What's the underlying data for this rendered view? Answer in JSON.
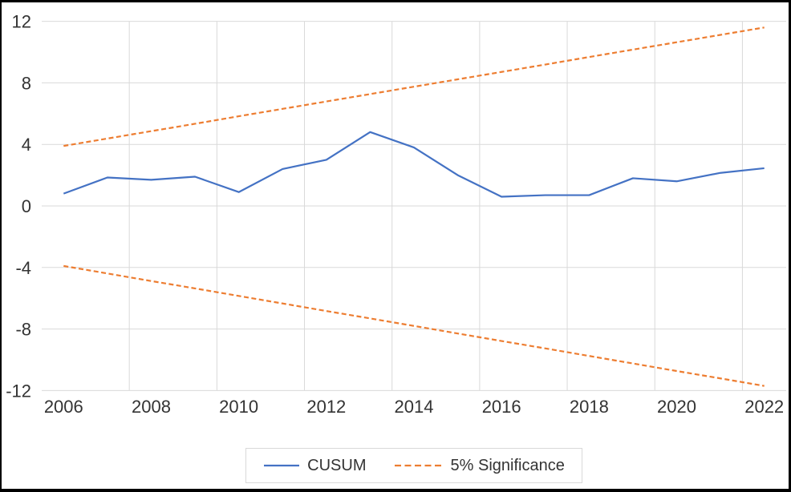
{
  "chart_data": {
    "type": "line",
    "x": [
      2006,
      2007,
      2008,
      2009,
      2010,
      2011,
      2012,
      2013,
      2014,
      2015,
      2016,
      2017,
      2018,
      2019,
      2020,
      2021,
      2022
    ],
    "series": [
      {
        "name": "CUSUM",
        "color": "#4472C4",
        "style": "solid",
        "values": [
          0.8,
          1.85,
          1.7,
          1.9,
          0.9,
          2.4,
          3.0,
          4.8,
          3.8,
          2.0,
          0.6,
          0.7,
          0.7,
          1.8,
          1.6,
          2.15,
          2.45
        ]
      },
      {
        "name": "5% Significance upper bound",
        "color": "#ED7D31",
        "style": "dashed",
        "values": [
          3.9,
          4.38,
          4.86,
          5.34,
          5.83,
          6.31,
          6.79,
          7.27,
          7.75,
          8.23,
          8.71,
          9.19,
          9.68,
          10.16,
          10.64,
          11.12,
          11.6
        ]
      },
      {
        "name": "5% Significance lower bound",
        "color": "#ED7D31",
        "style": "dashed",
        "values": [
          -3.9,
          -4.39,
          -4.88,
          -5.36,
          -5.85,
          -6.34,
          -6.83,
          -7.31,
          -7.8,
          -8.29,
          -8.78,
          -9.26,
          -9.75,
          -10.24,
          -10.73,
          -11.21,
          -11.7
        ]
      }
    ],
    "xticks": [
      2006,
      2008,
      2010,
      2012,
      2014,
      2016,
      2018,
      2020,
      2022
    ],
    "yticks": [
      12,
      8,
      4,
      0,
      -4,
      -8,
      -12
    ],
    "xlim": [
      2006,
      2022
    ],
    "ylim": [
      -12,
      12
    ],
    "grid": true,
    "legend": {
      "position": "bottom",
      "items": [
        {
          "label": "CUSUM",
          "color": "#4472C4",
          "style": "solid"
        },
        {
          "label": "5% Significance",
          "color": "#ED7D31",
          "style": "dashed"
        }
      ]
    },
    "colors": {
      "gridline": "#d9d9d9",
      "axis_text": "#333333",
      "figure_border": "#000000",
      "background": "#ffffff"
    }
  }
}
